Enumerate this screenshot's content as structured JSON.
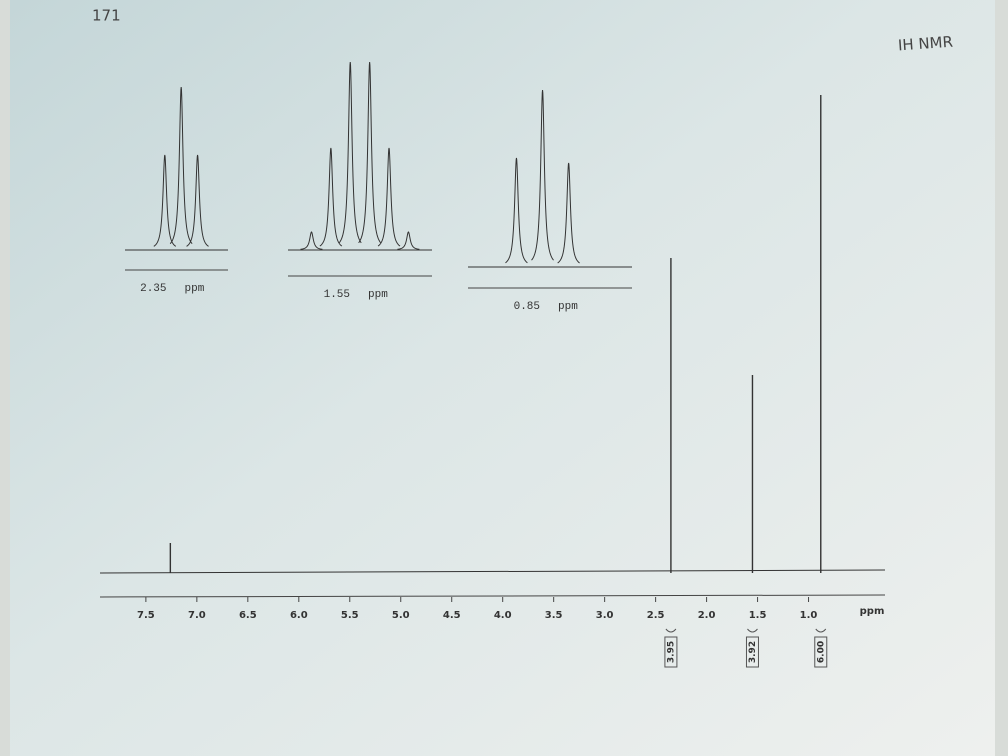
{
  "page_number": "171",
  "header_note": "IH NMR",
  "chart_data": [
    {
      "type": "spectrum",
      "xlabel": "ppm",
      "xlim": [
        7.95,
        0.25
      ],
      "ylim": [
        0,
        500
      ],
      "xticks": [
        7.5,
        {
          "value": 7,
          "label": "7.0"
        },
        6.5,
        {
          "value": 6,
          "label": "6.0"
        },
        5.5,
        {
          "value": 5,
          "label": "5.0"
        },
        4.5,
        {
          "value": 4,
          "label": "4.0"
        },
        3.5,
        {
          "value": 3,
          "label": "3.0"
        },
        2.5,
        {
          "value": 2,
          "label": "2.0"
        },
        1.5,
        {
          "value": 1,
          "label": "1.0"
        }
      ],
      "x": [
        7.26,
        2.35,
        1.55,
        0.88
      ],
      "values": [
        30,
        315,
        198,
        478
      ],
      "color": "#333333",
      "integrals": {
        "x": [
          2.35,
          1.55,
          0.88
        ],
        "values": [
          3.95,
          3.92,
          6
        ],
        "value_labels": [
          "3.95",
          "3.92",
          "6.00"
        ]
      }
    },
    {
      "type": "inset",
      "center_label": "2.35",
      "unit": "ppm",
      "xlim": [
        2.41,
        2.3
      ],
      "ylim": [
        0,
        200
      ],
      "x": [
        2.3675,
        2.35,
        2.3325
      ],
      "values": [
        95,
        163,
        95
      ],
      "color": "#333333"
    },
    {
      "type": "inset",
      "center_label": "1.55",
      "unit": "ppm",
      "xlim": [
        1.625,
        1.495
      ],
      "ylim": [
        0,
        200
      ],
      "x": [
        1.6038,
        1.5863,
        1.5688,
        1.5513,
        1.5338,
        1.5163
      ],
      "values": [
        18,
        102,
        188,
        188,
        102,
        18
      ],
      "color": "#333333"
    },
    {
      "type": "inset",
      "center_label": "0.85",
      "unit": "ppm",
      "xlim": [
        0.9,
        0.79
      ],
      "ylim": [
        0,
        200
      ],
      "x": [
        0.8675,
        0.85,
        0.8325
      ],
      "values": [
        109,
        177,
        104
      ],
      "color": "#333333"
    }
  ]
}
